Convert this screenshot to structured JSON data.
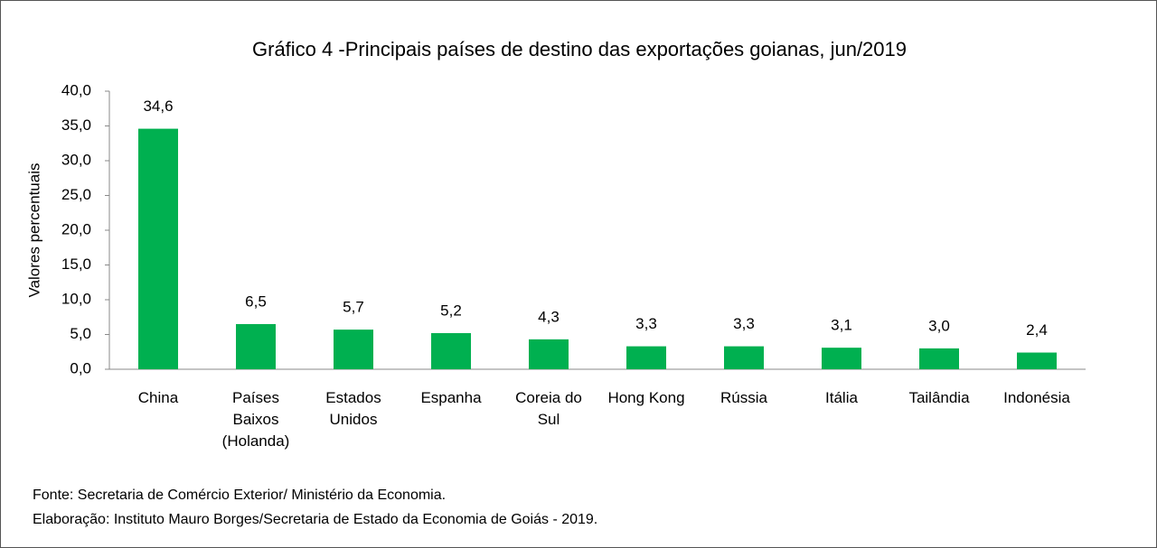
{
  "chart_data": {
    "type": "bar",
    "title": "Gráfico 4 -Principais países de destino das exportações goianas, jun/2019",
    "y_axis_label": "Valores percentuais",
    "categories": [
      "China",
      "Países Baixos (Holanda)",
      "Estados Unidos",
      "Espanha",
      "Coreia do Sul",
      "Hong Kong",
      "Rússia",
      "Itália",
      "Tailândia",
      "Indonésia"
    ],
    "values": [
      34.6,
      6.5,
      5.7,
      5.2,
      4.3,
      3.3,
      3.3,
      3.1,
      3.0,
      2.4
    ],
    "value_labels": [
      "34,6",
      "6,5",
      "5,7",
      "5,2",
      "4,3",
      "3,3",
      "3,3",
      "3,1",
      "3,0",
      "2,4"
    ],
    "color": "#00b050",
    "ylim": [
      0,
      40
    ],
    "yticks": [
      {
        "value": 0,
        "label": "0,0"
      },
      {
        "value": 5,
        "label": "5,0"
      },
      {
        "value": 10,
        "label": "10,0"
      },
      {
        "value": 15,
        "label": "15,0"
      },
      {
        "value": 20,
        "label": "20,0"
      },
      {
        "value": 25,
        "label": "25,0"
      },
      {
        "value": 30,
        "label": "30,0"
      },
      {
        "value": 35,
        "label": "35,0"
      },
      {
        "value": 40,
        "label": "40,0"
      }
    ],
    "grid": false,
    "footnotes": [
      "Fonte: Secretaria de Comércio Exterior/ Ministério da Economia.",
      "Elaboração: Instituto Mauro Borges/Secretaria de Estado da Economia de Goiás - 2019."
    ]
  }
}
